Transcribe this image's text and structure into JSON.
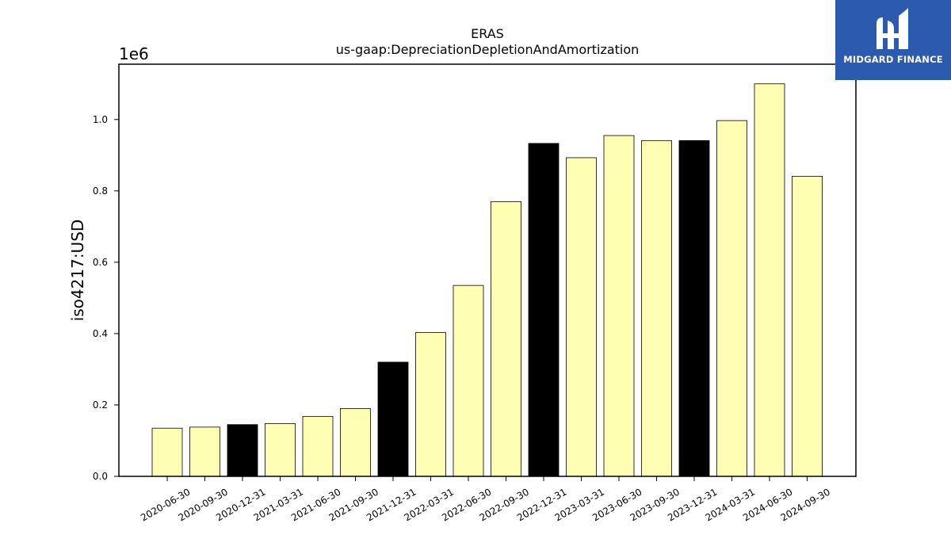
{
  "chart_data": {
    "type": "bar",
    "title": "ERAS",
    "subtitle": "us-gaap:DepreciationDepletionAndAmortization",
    "ylabel": "iso4217:USD",
    "scale_label": "1e6",
    "ylim": [
      0,
      1155000
    ],
    "yticks": [
      "0.0",
      "0.2",
      "0.4",
      "0.6",
      "0.8",
      "1.0"
    ],
    "ytick_values": [
      0,
      200000,
      400000,
      600000,
      800000,
      1000000
    ],
    "categories": [
      "2020-06-30",
      "2020-09-30",
      "2020-12-31",
      "2021-03-31",
      "2021-06-30",
      "2021-09-30",
      "2021-12-31",
      "2022-03-31",
      "2022-06-30",
      "2022-09-30",
      "2022-12-31",
      "2023-03-31",
      "2023-06-30",
      "2023-09-30",
      "2023-12-31",
      "2024-03-31",
      "2024-06-30",
      "2024-09-30"
    ],
    "values": [
      135000,
      138000,
      145000,
      148000,
      168000,
      190000,
      320000,
      403000,
      535000,
      770000,
      933000,
      893000,
      955000,
      941000,
      941000,
      997000,
      1100000,
      841000
    ],
    "colors": [
      "#ffffb3",
      "#ffffb3",
      "#000000",
      "#ffffb3",
      "#ffffb3",
      "#ffffb3",
      "#000000",
      "#ffffb3",
      "#ffffb3",
      "#ffffb3",
      "#000000",
      "#ffffb3",
      "#ffffb3",
      "#ffffb3",
      "#000000",
      "#ffffb3",
      "#ffffb3",
      "#ffffb3"
    ],
    "grid": false,
    "legend": "none"
  },
  "logo": {
    "text": "MIDGARD FINANCE"
  }
}
